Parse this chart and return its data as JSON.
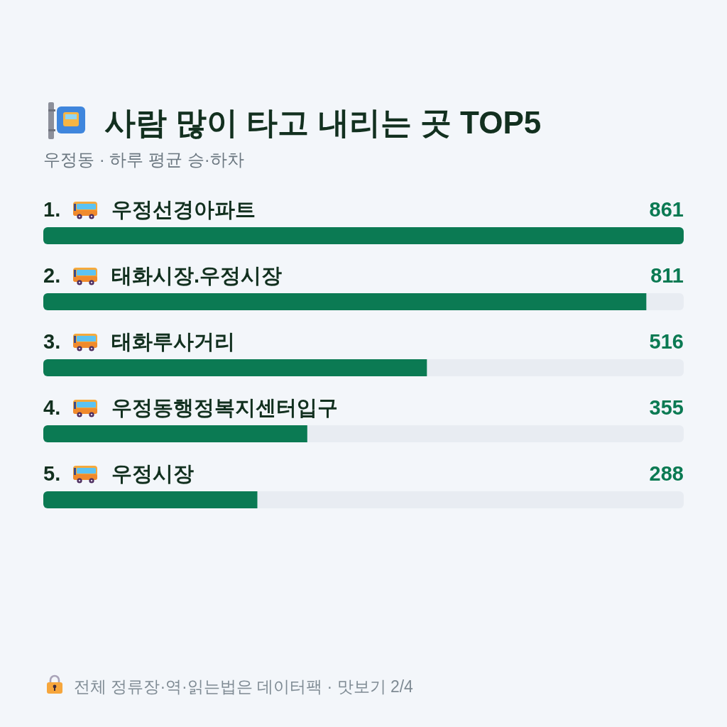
{
  "chart_data": {
    "type": "bar",
    "orientation": "horizontal",
    "title": "사람 많이 타고 내리는 곳 TOP5",
    "subtitle": "우정동 · 하루 평균 승·하차",
    "categories": [
      "1. 우정선경아파트",
      "2. 태화시장.우정시장",
      "3. 태화루사거리",
      "4. 우정동행정복지센터입구",
      "5. 우정시장"
    ],
    "values": [
      861,
      811,
      516,
      355,
      288
    ],
    "color": "#0b7a53",
    "data_labels": true,
    "annotations": [
      "전체 정류장·역·읽는법은 데이터팩 · 맛보기 2/4"
    ]
  }
}
